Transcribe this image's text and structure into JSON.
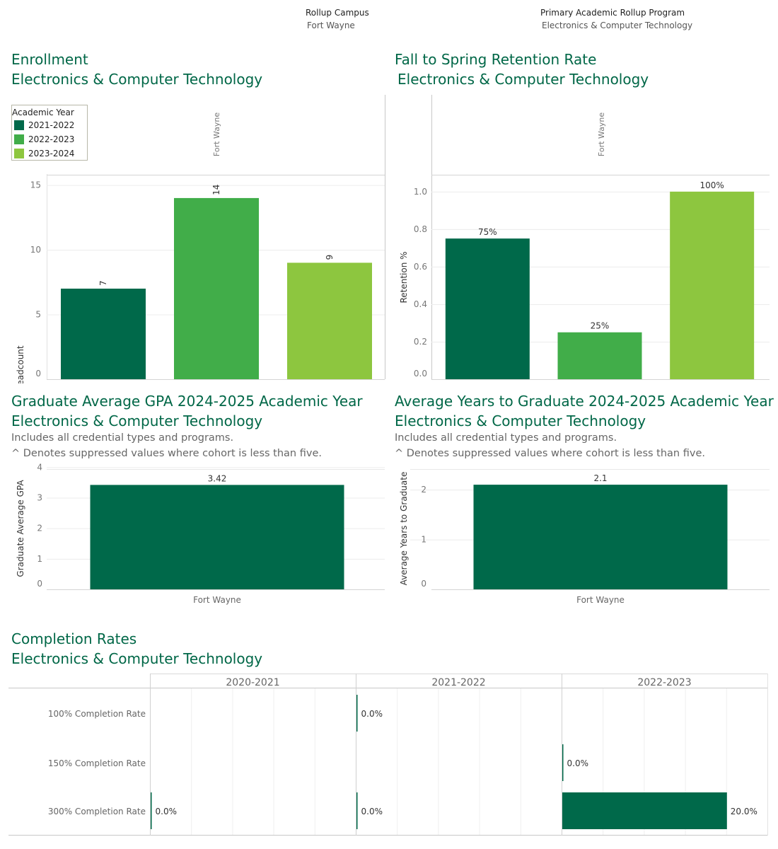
{
  "filters": {
    "campus_label": "Rollup Campus",
    "campus_value": "Fort Wayne",
    "program_label": "Primary Academic Rollup Program",
    "program_value": "Electronics & Computer Technology"
  },
  "colors": {
    "dark": "#00694A",
    "mid": "#41AD49",
    "light": "#8DC63F",
    "title": "#006747"
  },
  "sections": {
    "enrollment": {
      "title": "Enrollment",
      "subtitle": "Electronics & Computer Technology"
    },
    "retention": {
      "title": "Fall to Spring Retention Rate",
      "subtitle": "Electronics & Computer Technology"
    },
    "gpa": {
      "title": "Graduate Average GPA 2024-2025 Academic Year",
      "subtitle": "Electronics & Computer Technology",
      "note1": "Includes all credential types and programs.",
      "note2": "^ Denotes suppressed values where cohort is less than five."
    },
    "years": {
      "title": "Average Years to Graduate 2024-2025 Academic Year",
      "subtitle": "Electronics & Computer Technology",
      "note1": "Includes all credential types and programs.",
      "note2": "^ Denotes suppressed values where cohort is less than five."
    },
    "completion": {
      "title": "Completion Rates",
      "subtitle": "Electronics & Computer Technology"
    }
  },
  "legend": {
    "title": "Academic Year",
    "items": [
      {
        "label": "2021-2022",
        "color": "#00694A"
      },
      {
        "label": "2022-2023",
        "color": "#41AD49"
      },
      {
        "label": "2023-2024",
        "color": "#8DC63F"
      }
    ]
  },
  "chart_data": [
    {
      "id": "enrollment",
      "type": "bar",
      "panel": "Fort Wayne",
      "categories": [
        "2021-2022",
        "2022-2023",
        "2023-2024"
      ],
      "values": [
        7,
        14,
        9
      ],
      "labels": [
        "7",
        "14",
        "9"
      ],
      "ylabel": "Headcount",
      "yticks": [
        0,
        5,
        10,
        15
      ],
      "ylim": [
        0,
        15.8
      ]
    },
    {
      "id": "retention",
      "type": "bar",
      "panel": "Fort Wayne",
      "categories": [
        "2021-2022",
        "2022-2023",
        "2023-2024"
      ],
      "values": [
        0.75,
        0.25,
        1.0
      ],
      "labels": [
        "75%",
        "25%",
        "100%"
      ],
      "ylabel": "Retention %",
      "yticks": [
        "0.0",
        "0.2",
        "0.4",
        "0.6",
        "0.8",
        "1.0"
      ],
      "ylim": [
        0,
        1.09
      ]
    },
    {
      "id": "gpa",
      "type": "bar",
      "categories": [
        "Fort Wayne"
      ],
      "values": [
        3.42
      ],
      "labels": [
        "3.42"
      ],
      "ylabel": "Graduate Average GPA",
      "yticks": [
        0,
        1,
        2,
        3,
        4
      ],
      "ylim": [
        0,
        3.8
      ]
    },
    {
      "id": "years",
      "type": "bar",
      "categories": [
        "Fort Wayne"
      ],
      "values": [
        2.1
      ],
      "labels": [
        "2.1"
      ],
      "ylabel": "Average Years to Graduate",
      "yticks": [
        0,
        1,
        2
      ],
      "ylim": [
        0,
        2.3
      ]
    },
    {
      "id": "completion",
      "type": "bar",
      "orientation": "horizontal",
      "columns": [
        "2020-2021",
        "2021-2022",
        "2022-2023"
      ],
      "rows": [
        "100% Completion Rate",
        "150% Completion Rate",
        "300% Completion Rate"
      ],
      "values": [
        [
          null,
          0.0,
          null
        ],
        [
          null,
          null,
          0.0
        ],
        [
          0.0,
          0.0,
          20.0
        ]
      ],
      "labels": [
        [
          null,
          "0.0%",
          null
        ],
        [
          null,
          null,
          "0.0%"
        ],
        [
          "0.0%",
          "0.0%",
          "20.0%"
        ]
      ],
      "xlim": [
        0,
        25
      ]
    }
  ]
}
